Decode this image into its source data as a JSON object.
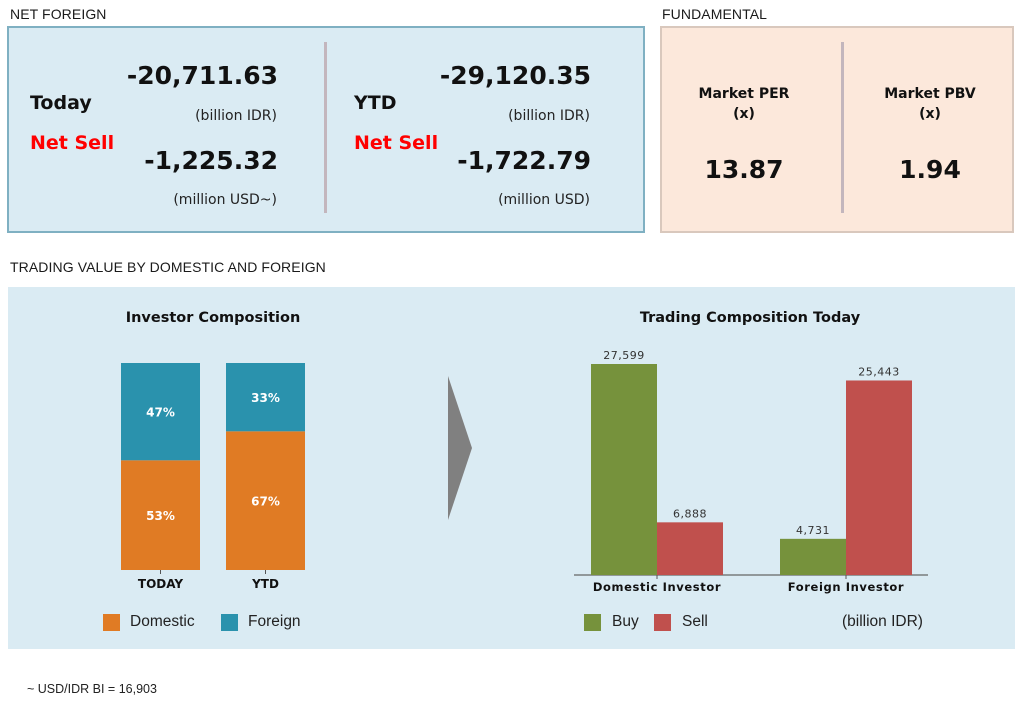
{
  "net_foreign": {
    "section_title": "NET FOREIGN",
    "today": {
      "label": "Today",
      "status": "Net Sell",
      "idr_value": "-20,711.63",
      "idr_unit": "(billion IDR)",
      "usd_value": "-1,225.32",
      "usd_unit": "(million USD~)"
    },
    "ytd": {
      "label": "YTD",
      "status": "Net Sell",
      "idr_value": "-29,120.35",
      "idr_unit": "(billion IDR)",
      "usd_value": "-1,722.79",
      "usd_unit": "(million USD)"
    }
  },
  "fundamental": {
    "section_title": "FUNDAMENTAL",
    "per": {
      "label": "Market PER",
      "unit": "(x)",
      "value": "13.87"
    },
    "pbv": {
      "label": "Market PBV",
      "unit": "(x)",
      "value": "1.94"
    }
  },
  "trading": {
    "section_title": "TRADING VALUE BY DOMESTIC AND FOREIGN",
    "unit_note": "(billion IDR)"
  },
  "footnote": "~ USD/IDR BI = 16,903",
  "colors": {
    "domestic": "#e07b24",
    "foreign": "#2a92ad",
    "buy": "#76923c",
    "sell": "#c0504d",
    "net_sell_text": "#ff0000",
    "arrow": "#808080"
  },
  "chart_data": [
    {
      "type": "bar",
      "stacked": true,
      "normalized": true,
      "title": "Investor Composition",
      "categories": [
        "TODAY",
        "YTD"
      ],
      "series": [
        {
          "name": "Domestic",
          "values": [
            53,
            67
          ],
          "labels": [
            "53%",
            "67%"
          ]
        },
        {
          "name": "Foreign",
          "values": [
            47,
            33
          ],
          "labels": [
            "47%",
            "33%"
          ]
        }
      ],
      "ylim": [
        0,
        100
      ],
      "xlabel": "",
      "ylabel": "",
      "grid": false,
      "legend": [
        "Domestic",
        "Foreign"
      ],
      "legend_position": "bottom"
    },
    {
      "type": "bar",
      "stacked": false,
      "title": "Trading Composition Today",
      "categories": [
        "Domestic Investor",
        "Foreign Investor"
      ],
      "series": [
        {
          "name": "Buy",
          "values": [
            27599,
            4731
          ],
          "labels": [
            "27,599",
            "4,731"
          ]
        },
        {
          "name": "Sell",
          "values": [
            6888,
            25443
          ],
          "labels": [
            "6,888",
            "25,443"
          ]
        }
      ],
      "ylim": [
        0,
        27599
      ],
      "xlabel": "",
      "ylabel": "",
      "unit": "(billion IDR)",
      "grid": false,
      "legend": [
        "Buy",
        "Sell"
      ],
      "legend_position": "bottom"
    }
  ]
}
